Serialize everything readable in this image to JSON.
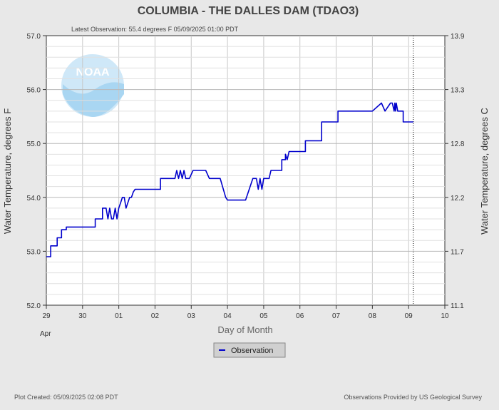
{
  "title": "COLUMBIA - THE DALLES DAM  (TDAO3)",
  "latest_observation": "Latest Observation: 55.4 degrees F 05/09/2025 01:00 PDT",
  "footer": {
    "created": "Plot Created: 05/09/2025 02:08 PDT",
    "provider": "Observations Provided by US Geological Survey"
  },
  "logo_text": "NOAA",
  "colors": {
    "series": "#0000cc",
    "background": "#e8e8e8",
    "plot_bg": "#ffffff",
    "grid": "#c8c8c8",
    "logo": "#8fc9ec"
  },
  "chart_data": {
    "type": "line",
    "xlabel": "Day of Month",
    "ylabel_left": "Water Temperature, degrees F",
    "ylabel_right": "Water Temperature, degrees C",
    "x_month_label": "Apr",
    "xlim": [
      0,
      11
    ],
    "ylim": [
      52.0,
      57.0
    ],
    "x_ticks": [
      {
        "value": 0,
        "label": "29"
      },
      {
        "value": 1,
        "label": "30"
      },
      {
        "value": 2,
        "label": "01"
      },
      {
        "value": 3,
        "label": "02"
      },
      {
        "value": 4,
        "label": "03"
      },
      {
        "value": 5,
        "label": "04"
      },
      {
        "value": 6,
        "label": "05"
      },
      {
        "value": 7,
        "label": "06"
      },
      {
        "value": 8,
        "label": "07"
      },
      {
        "value": 9,
        "label": "08"
      },
      {
        "value": 10,
        "label": "09"
      },
      {
        "value": 11,
        "label": "10"
      }
    ],
    "y_ticks_left": [
      {
        "value": 52.0,
        "label": "52.0"
      },
      {
        "value": 53.0,
        "label": "53.0"
      },
      {
        "value": 54.0,
        "label": "54.0"
      },
      {
        "value": 55.0,
        "label": "55.0"
      },
      {
        "value": 56.0,
        "label": "56.0"
      },
      {
        "value": 57.0,
        "label": "57.0"
      }
    ],
    "y_ticks_right": [
      {
        "value": 52.0,
        "label": "11.1"
      },
      {
        "value": 53.0,
        "label": "11.7"
      },
      {
        "value": 54.0,
        "label": "12.2"
      },
      {
        "value": 55.0,
        "label": "12.8"
      },
      {
        "value": 56.0,
        "label": "13.3"
      },
      {
        "value": 57.0,
        "label": "13.9"
      }
    ],
    "latest_marker_x": 10.13,
    "legend": {
      "entries": [
        "Observation"
      ],
      "placement": "bottom-center"
    },
    "series": [
      {
        "name": "Observation",
        "x": [
          0.0,
          0.12,
          0.12,
          0.3,
          0.3,
          0.42,
          0.42,
          0.55,
          0.55,
          1.0,
          1.35,
          1.35,
          1.55,
          1.55,
          1.65,
          1.7,
          1.75,
          1.8,
          1.85,
          1.9,
          1.95,
          2.0,
          2.05,
          2.1,
          2.15,
          2.2,
          2.3,
          2.35,
          2.4,
          2.45,
          2.55,
          2.55,
          2.65,
          2.65,
          3.0,
          3.15,
          3.15,
          3.4,
          3.4,
          3.55,
          3.6,
          3.65,
          3.7,
          3.75,
          3.8,
          3.85,
          3.9,
          3.95,
          4.05,
          4.15,
          4.15,
          4.4,
          4.5,
          4.5,
          4.8,
          4.95,
          5.0,
          5.5,
          5.5,
          5.6,
          5.7,
          5.8,
          5.85,
          5.9,
          5.95,
          6.0,
          6.05,
          6.1,
          6.15,
          6.2,
          6.3,
          6.3,
          6.5,
          6.5,
          6.6,
          6.6,
          6.65,
          6.7,
          6.75,
          6.75,
          7.0,
          7.15,
          7.15,
          7.45,
          7.45,
          7.6,
          7.6,
          8.0,
          8.05,
          8.05,
          8.6,
          8.6,
          8.85,
          8.85,
          9.0,
          9.25,
          9.25,
          9.35,
          9.35,
          9.5,
          9.55,
          9.6,
          9.62,
          9.64,
          9.66,
          9.7,
          9.8,
          9.8,
          9.85,
          9.85,
          10.0,
          10.13
        ],
        "y": [
          52.9,
          52.9,
          53.1,
          53.1,
          53.25,
          53.25,
          53.4,
          53.4,
          53.45,
          53.45,
          53.45,
          53.6,
          53.6,
          53.8,
          53.8,
          53.6,
          53.8,
          53.6,
          53.6,
          53.8,
          53.6,
          53.8,
          53.9,
          54.0,
          54.0,
          53.8,
          54.0,
          54.0,
          54.1,
          54.15,
          54.15,
          54.15,
          54.15,
          54.15,
          54.15,
          54.15,
          54.35,
          54.35,
          54.35,
          54.35,
          54.5,
          54.35,
          54.5,
          54.35,
          54.5,
          54.35,
          54.35,
          54.35,
          54.5,
          54.5,
          54.5,
          54.5,
          54.35,
          54.35,
          54.35,
          54.0,
          53.95,
          53.95,
          53.95,
          54.15,
          54.35,
          54.35,
          54.15,
          54.35,
          54.15,
          54.35,
          54.35,
          54.35,
          54.35,
          54.5,
          54.5,
          54.5,
          54.5,
          54.7,
          54.7,
          54.8,
          54.7,
          54.85,
          54.85,
          54.85,
          54.85,
          54.85,
          55.05,
          55.05,
          55.05,
          55.05,
          55.4,
          55.4,
          55.4,
          55.6,
          55.6,
          55.6,
          55.6,
          55.6,
          55.6,
          55.75,
          55.75,
          55.6,
          55.6,
          55.75,
          55.75,
          55.6,
          55.75,
          55.6,
          55.75,
          55.6,
          55.6,
          55.6,
          55.6,
          55.4,
          55.4,
          55.4
        ]
      }
    ]
  }
}
